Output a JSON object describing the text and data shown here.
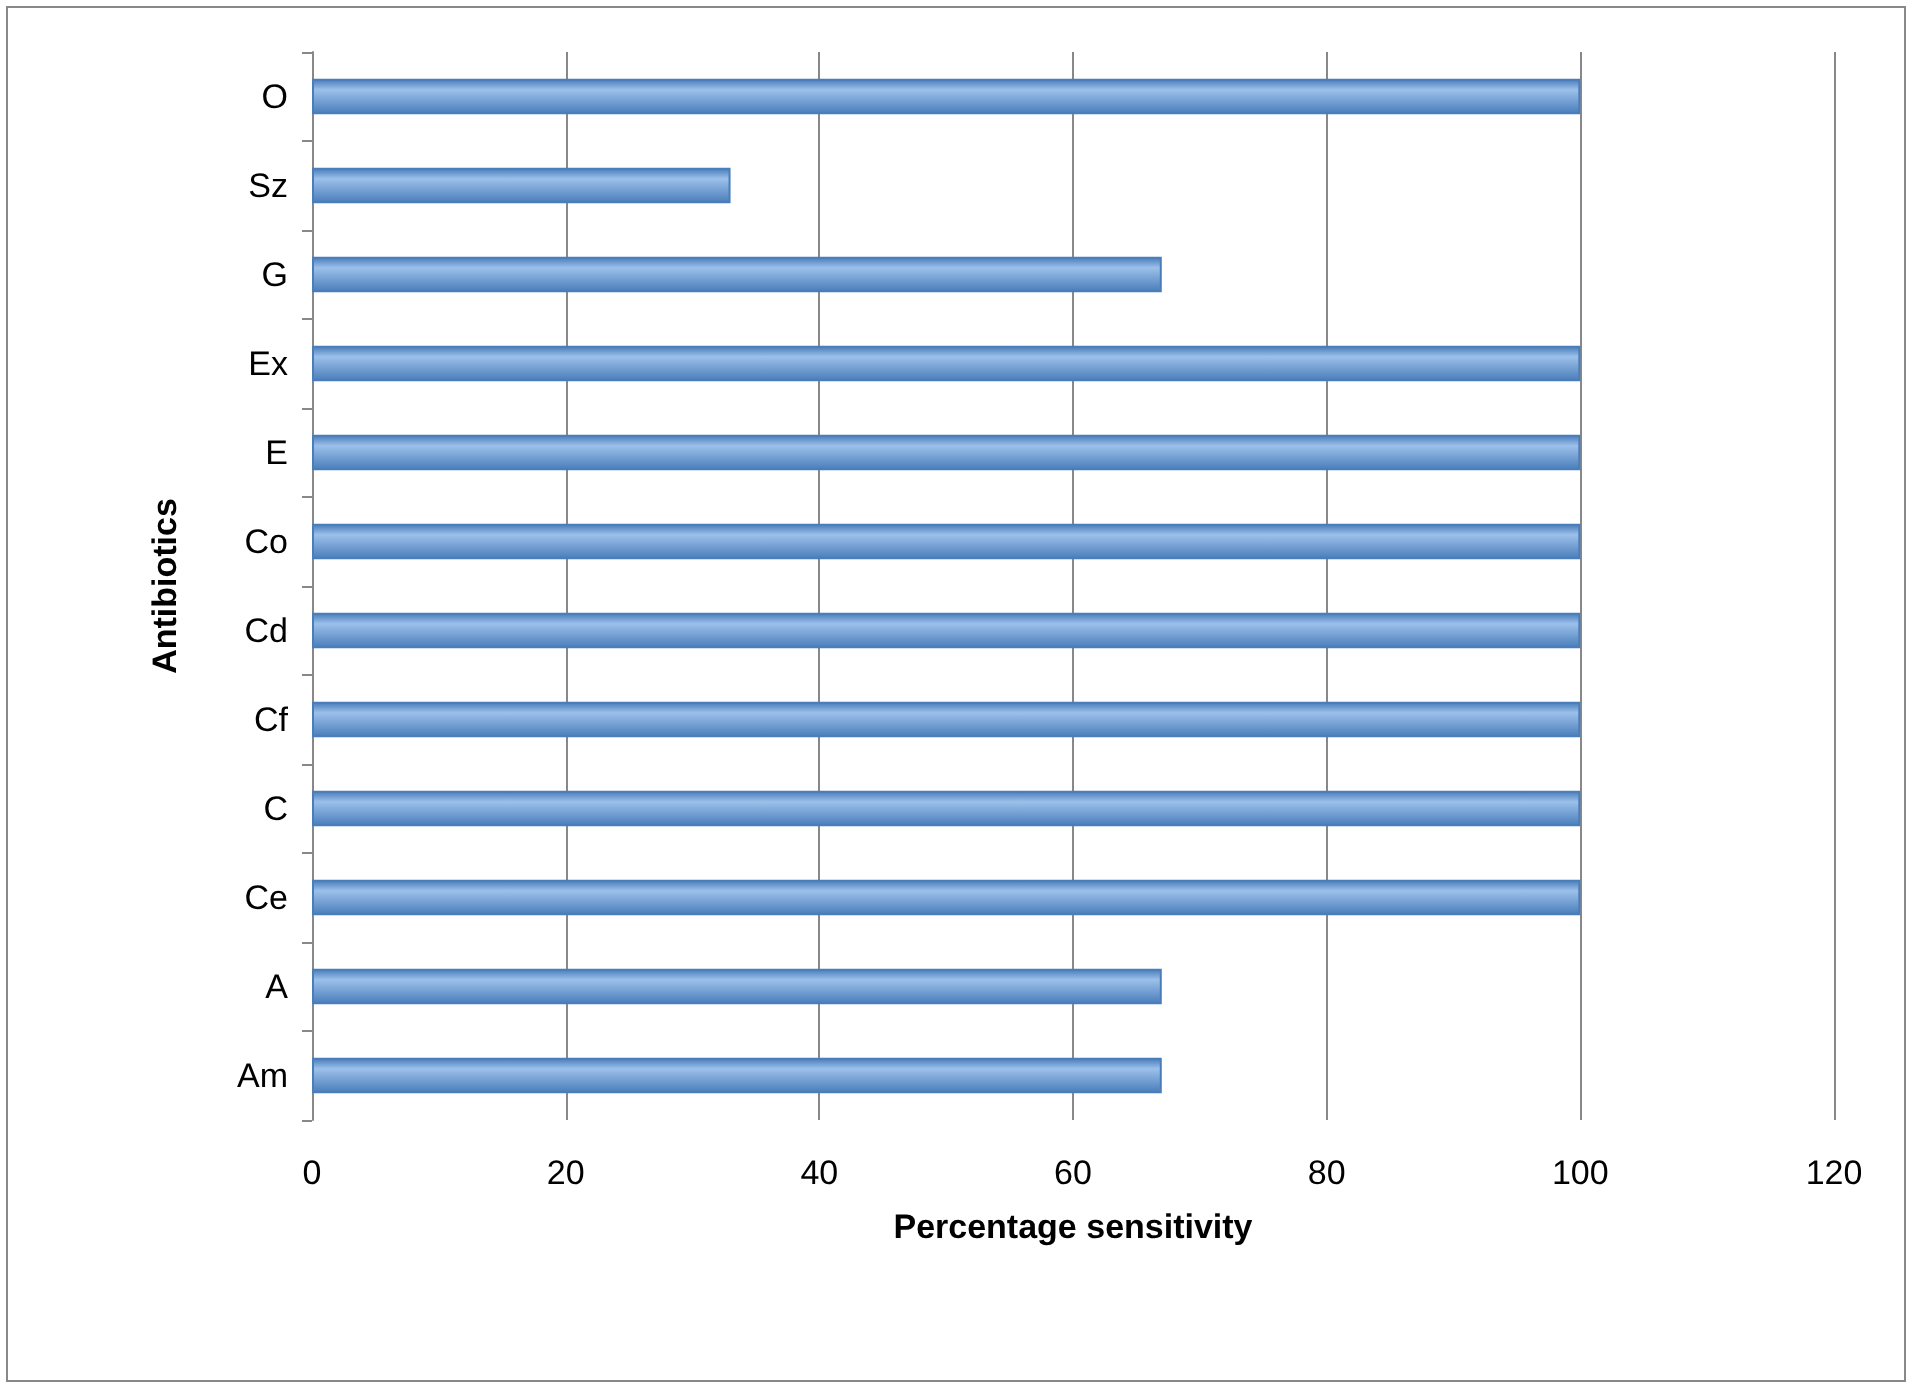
{
  "chart_data": {
    "type": "bar",
    "orientation": "horizontal",
    "xlabel": "Percentage sensitivity",
    "ylabel": "Antibiotics",
    "categories": [
      "O",
      "Sz",
      "G",
      "Ex",
      "E",
      "Co",
      "Cd",
      "Cf",
      "C",
      "Ce",
      "A",
      "Am"
    ],
    "values": [
      100,
      33,
      67,
      100,
      100,
      100,
      100,
      100,
      100,
      100,
      67,
      67
    ],
    "color": "#4a7ebb",
    "xlim": [
      0,
      120
    ],
    "xticks": [
      0,
      20,
      40,
      60,
      80,
      100,
      120
    ],
    "grid": "x"
  }
}
